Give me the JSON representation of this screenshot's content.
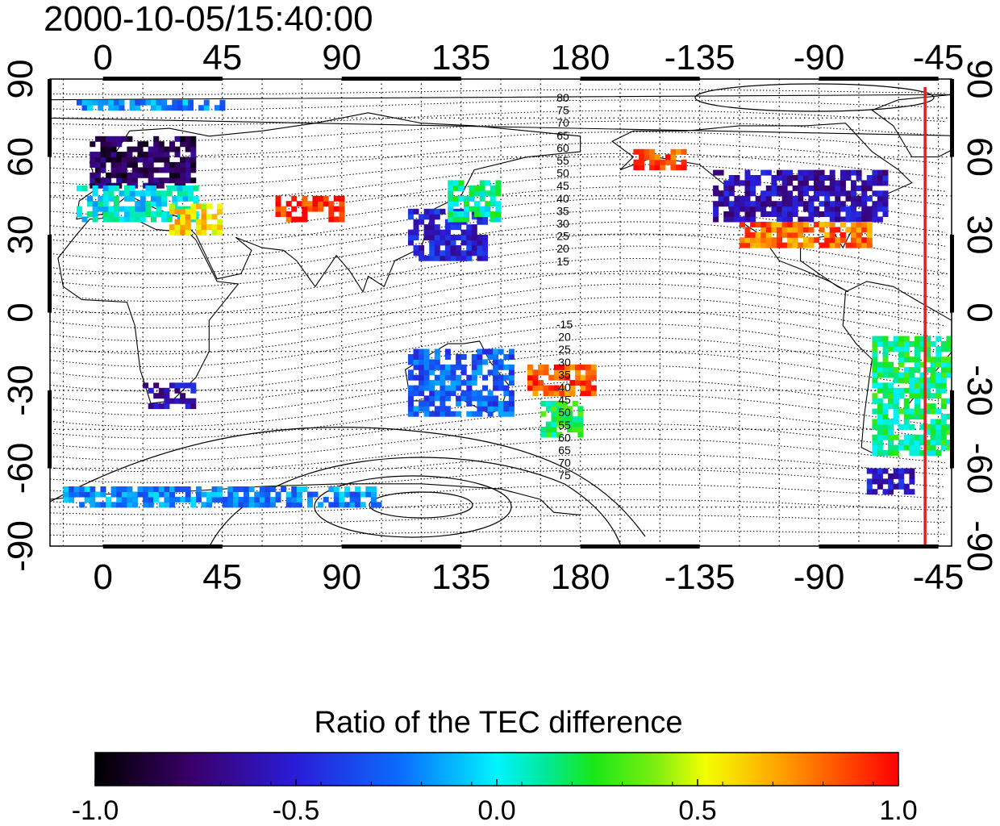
{
  "timestamp": "2000-10-05/15:40:00",
  "lon_ticks": [
    "0",
    "45",
    "90",
    "135",
    "180",
    "-135",
    "-90",
    "-45"
  ],
  "lat_ticks_left": [
    "90",
    "60",
    "30",
    "0",
    "-30",
    "-60",
    "-90"
  ],
  "lat_ticks_right": [
    "90",
    "60",
    "30",
    "0",
    "-30",
    "-60",
    "-90"
  ],
  "contour_labels_north": [
    "80",
    "75",
    "70",
    "65",
    "60",
    "55",
    "50",
    "45",
    "40",
    "35",
    "30",
    "25",
    "20",
    "15"
  ],
  "contour_labels_south": [
    "-15",
    "20",
    "25",
    "30",
    "35",
    "40",
    "45",
    "50",
    "55",
    "60",
    "65",
    "70",
    "75"
  ],
  "colorbar": {
    "title": "Ratio of the TEC difference",
    "ticks": [
      "-1.0",
      "-0.5",
      "0.0",
      "0.5",
      "1.0"
    ],
    "min": -1.0,
    "max": 1.0
  },
  "marker": {
    "longitude": -50,
    "color": "#e02020"
  },
  "map": {
    "lon_start": -20,
    "lon_span": 340,
    "lat_range": [
      -90,
      90
    ],
    "grid": "dotted every 15° longitude, 15° latitude"
  },
  "data_patches": [
    {
      "region": "Europe",
      "lon": [
        -5,
        35
      ],
      "lat": [
        48,
        68
      ],
      "value": -0.8
    },
    {
      "region": "Europe-south",
      "lon": [
        -10,
        35
      ],
      "lat": [
        35,
        48
      ],
      "value": 0.0
    },
    {
      "region": "Mediterranean",
      "lon": [
        25,
        45
      ],
      "lat": [
        30,
        42
      ],
      "value": 0.6
    },
    {
      "region": "Central-Asia",
      "lon": [
        65,
        90
      ],
      "lat": [
        35,
        45
      ],
      "value": 0.95
    },
    {
      "region": "East-Asia",
      "lon": [
        115,
        145
      ],
      "lat": [
        20,
        40
      ],
      "value": -0.5
    },
    {
      "region": "Japan",
      "lon": [
        130,
        150
      ],
      "lat": [
        35,
        50
      ],
      "value": 0.1
    },
    {
      "region": "South-Africa",
      "lon": [
        15,
        35
      ],
      "lat": [
        -37,
        -28
      ],
      "value": -0.6
    },
    {
      "region": "Australia",
      "lon": [
        115,
        155
      ],
      "lat": [
        -40,
        -15
      ],
      "value": -0.3
    },
    {
      "region": "New-Zealand",
      "lon": [
        165,
        180
      ],
      "lat": [
        -48,
        -35
      ],
      "value": 0.2
    },
    {
      "region": "Pacific-SW",
      "lon": [
        160,
        185
      ],
      "lat": [
        -32,
        -20
      ],
      "value": 0.85
    },
    {
      "region": "North-America",
      "lon": [
        -130,
        -65
      ],
      "lat": [
        35,
        55
      ],
      "value": -0.6
    },
    {
      "region": "North-America-south",
      "lon": [
        -120,
        -70
      ],
      "lat": [
        25,
        35
      ],
      "value": 0.8
    },
    {
      "region": "Alaska",
      "lon": [
        -160,
        -140
      ],
      "lat": [
        55,
        62
      ],
      "value": 0.9
    },
    {
      "region": "South-America",
      "lon": [
        -70,
        -40
      ],
      "lat": [
        -55,
        -10
      ],
      "value": 0.15
    },
    {
      "region": "South-America-tip",
      "lon": [
        -72,
        -55
      ],
      "lat": [
        -70,
        -60
      ],
      "value": -0.55
    },
    {
      "region": "Antarctica-coast",
      "lon": [
        -15,
        105
      ],
      "lat": [
        -75,
        -68
      ],
      "value": -0.2
    },
    {
      "region": "Arctic",
      "lon": [
        -10,
        45
      ],
      "lat": [
        78,
        82
      ],
      "value": -0.2
    }
  ]
}
